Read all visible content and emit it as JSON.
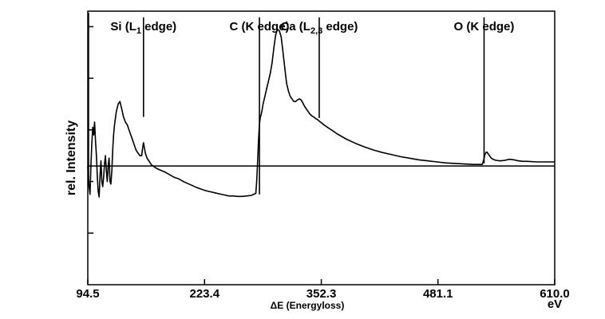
{
  "chart_data": {
    "type": "line",
    "xlabel": "ΔE (Energyloss)",
    "ylabel": "rel. Intensity",
    "x_unit": "eV",
    "xlim": [
      94.5,
      610.0
    ],
    "x_ticks": [
      "94.5",
      "223.4",
      "352.3",
      "481.1",
      "610.0"
    ],
    "x_tick_values": [
      94.5,
      223.4,
      352.3,
      481.1,
      610.0
    ],
    "ylim": [
      -2.3,
      3.0
    ],
    "y_ticks": [
      -1.3,
      -0.3,
      0.7,
      1.7,
      2.7
    ],
    "grid": false,
    "baseline": 0,
    "edges": [
      {
        "label_main": "Si (L",
        "label_sub": "1",
        "label_tail": " edge)",
        "energy": 156,
        "top": 2.88,
        "bottom": 0.95
      },
      {
        "label_main": "C (K edge)",
        "label_sub": "",
        "label_tail": "",
        "energy": 284,
        "top": 2.88,
        "bottom": -0.55
      },
      {
        "label_main": "Ca (L",
        "label_sub": "2,3",
        "label_tail": " edge)",
        "energy": 350,
        "top": 2.88,
        "bottom": 0.93
      },
      {
        "label_main": "O (K edge)",
        "label_sub": "",
        "label_tail": "",
        "energy": 532,
        "top": 2.88,
        "bottom": 0.05
      }
    ],
    "series": [
      {
        "x": [
          94.5,
          96,
          97,
          98,
          99,
          100,
          101,
          102,
          103,
          104,
          105,
          106,
          107,
          108,
          109,
          110,
          111,
          112,
          113,
          114,
          115,
          116,
          117,
          118,
          119,
          120,
          121,
          122,
          123,
          124,
          126,
          128,
          130,
          132,
          134,
          136,
          138,
          140,
          142,
          144,
          146,
          148,
          150,
          152,
          154,
          155,
          156,
          157,
          158,
          159,
          160,
          161,
          162,
          163,
          165,
          168,
          172,
          176,
          180,
          185,
          190,
          195,
          200,
          205,
          210,
          215,
          220,
          225,
          230,
          235,
          240,
          245,
          250,
          255,
          260,
          265,
          270,
          275,
          280,
          281,
          282,
          283,
          284,
          285,
          286,
          287,
          288,
          290,
          292,
          294,
          296,
          298,
          300,
          302,
          304,
          306,
          308,
          310,
          312,
          314,
          316,
          318,
          320,
          322,
          324,
          326,
          328,
          330,
          332,
          334,
          336,
          338,
          340,
          342,
          344,
          346,
          348,
          350,
          355,
          360,
          365,
          370,
          380,
          390,
          400,
          410,
          420,
          430,
          440,
          450,
          460,
          470,
          480,
          490,
          500,
          510,
          520,
          525,
          530,
          531,
          532,
          533,
          534,
          535,
          536,
          538,
          540,
          542,
          545,
          550,
          555,
          560,
          565,
          570,
          575,
          580,
          590,
          600,
          610
        ],
        "y": [
          0.0,
          -0.4,
          -0.55,
          0.05,
          0.45,
          0.75,
          0.6,
          0.85,
          0.5,
          0.2,
          -0.2,
          -0.5,
          -0.6,
          -0.2,
          0.1,
          -0.3,
          -0.4,
          -0.2,
          0.05,
          0.2,
          -0.1,
          -0.3,
          0.0,
          0.15,
          -0.3,
          -0.35,
          -0.1,
          0.3,
          0.6,
          0.8,
          1.05,
          1.2,
          1.25,
          1.1,
          0.95,
          0.85,
          0.8,
          0.7,
          0.6,
          0.5,
          0.4,
          0.3,
          0.25,
          0.2,
          0.2,
          0.35,
          0.45,
          0.35,
          0.25,
          0.2,
          0.15,
          0.12,
          0.1,
          0.07,
          0.02,
          -0.02,
          -0.06,
          -0.09,
          -0.12,
          -0.17,
          -0.22,
          -0.25,
          -0.3,
          -0.34,
          -0.38,
          -0.42,
          -0.45,
          -0.48,
          -0.5,
          -0.52,
          -0.54,
          -0.56,
          -0.58,
          -0.58,
          -0.59,
          -0.59,
          -0.58,
          -0.57,
          -0.53,
          -0.3,
          0.1,
          0.5,
          0.8,
          0.95,
          1.0,
          1.1,
          1.2,
          1.35,
          1.5,
          1.65,
          1.8,
          2.0,
          2.3,
          2.55,
          2.65,
          2.62,
          2.5,
          2.2,
          1.9,
          1.6,
          1.45,
          1.35,
          1.3,
          1.25,
          1.25,
          1.28,
          1.3,
          1.28,
          1.22,
          1.15,
          1.1,
          1.05,
          1.0,
          0.97,
          0.95,
          0.92,
          0.9,
          0.87,
          0.8,
          0.74,
          0.68,
          0.62,
          0.52,
          0.44,
          0.37,
          0.31,
          0.26,
          0.22,
          0.18,
          0.15,
          0.12,
          0.1,
          0.08,
          0.06,
          0.05,
          0.04,
          0.03,
          0.03,
          0.03,
          0.08,
          0.15,
          0.22,
          0.26,
          0.27,
          0.25,
          0.2,
          0.15,
          0.13,
          0.11,
          0.1,
          0.11,
          0.13,
          0.12,
          0.1,
          0.09,
          0.09,
          0.08,
          0.08,
          0.08
        ]
      }
    ]
  }
}
